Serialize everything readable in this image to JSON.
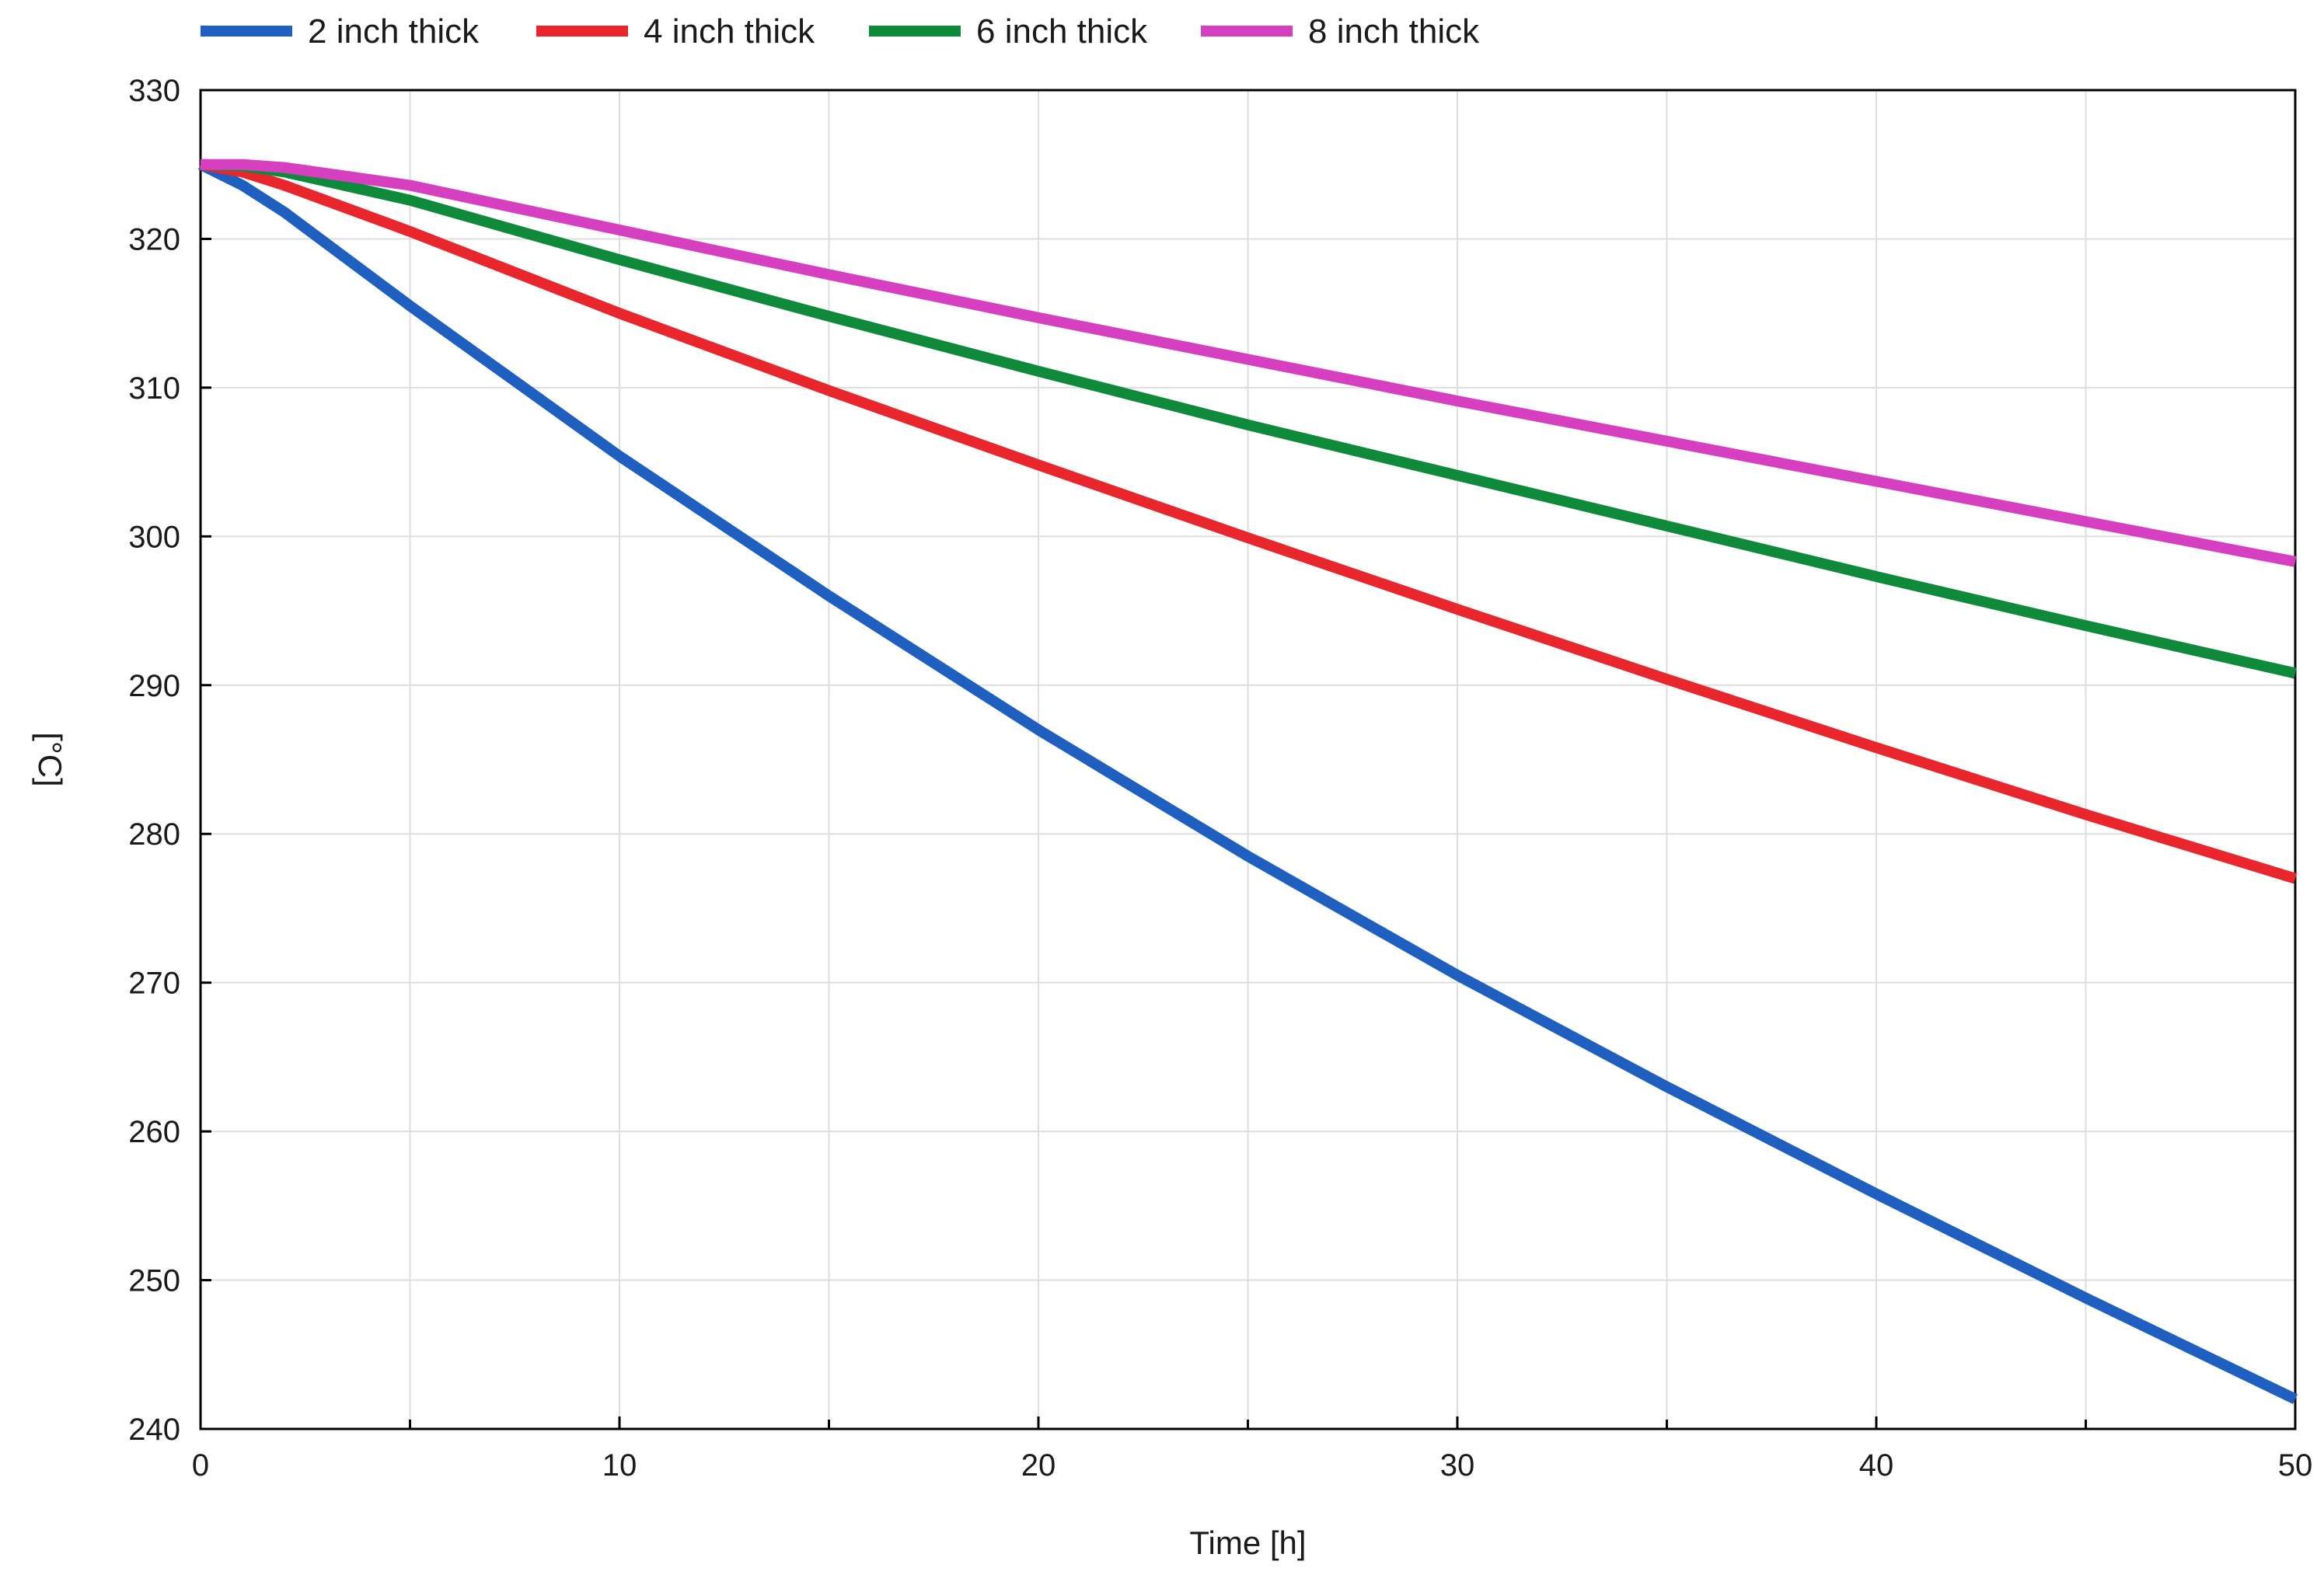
{
  "chart_data": {
    "type": "line",
    "title": "",
    "xlabel": "Time [h]",
    "ylabel": "[°C]",
    "xlim": [
      0,
      50
    ],
    "ylim": [
      240,
      330
    ],
    "xticks": [
      0,
      10,
      20,
      30,
      40,
      50
    ],
    "xtick_labels": [
      "0",
      "10",
      "20",
      "30",
      "40",
      "50"
    ],
    "xminor_ticks": [
      5,
      15,
      25,
      35,
      45
    ],
    "yticks": [
      240,
      250,
      260,
      270,
      280,
      290,
      300,
      310,
      320,
      330
    ],
    "ytick_labels": [
      "240",
      "250",
      "260",
      "270",
      "280",
      "290",
      "300",
      "310",
      "320",
      "330"
    ],
    "grid": true,
    "legend_position": "top-left, above plot",
    "x": [
      0,
      1,
      2,
      5,
      10,
      15,
      20,
      25,
      30,
      35,
      40,
      45,
      50
    ],
    "series": [
      {
        "name": "2 inch thick",
        "color": "#1f5fbf",
        "values": [
          325,
          323.6,
          321.8,
          315.5,
          305.4,
          296.0,
          287.0,
          278.5,
          270.5,
          263.0,
          255.8,
          248.8,
          242.0
        ]
      },
      {
        "name": "4 inch thick",
        "color": "#e8262b",
        "values": [
          325,
          324.5,
          323.6,
          320.5,
          315.0,
          309.8,
          304.8,
          299.9,
          295.1,
          290.4,
          285.8,
          281.3,
          277.0
        ]
      },
      {
        "name": "6 inch thick",
        "color": "#0f8a3a",
        "values": [
          325,
          324.9,
          324.5,
          322.6,
          318.6,
          314.8,
          311.1,
          307.5,
          304.1,
          300.7,
          297.3,
          294.0,
          290.8
        ]
      },
      {
        "name": "8 inch thick",
        "color": "#d63fc0",
        "values": [
          325,
          325.0,
          324.8,
          323.6,
          320.6,
          317.6,
          314.7,
          311.9,
          309.1,
          306.4,
          303.7,
          301.0,
          298.3
        ]
      }
    ]
  }
}
